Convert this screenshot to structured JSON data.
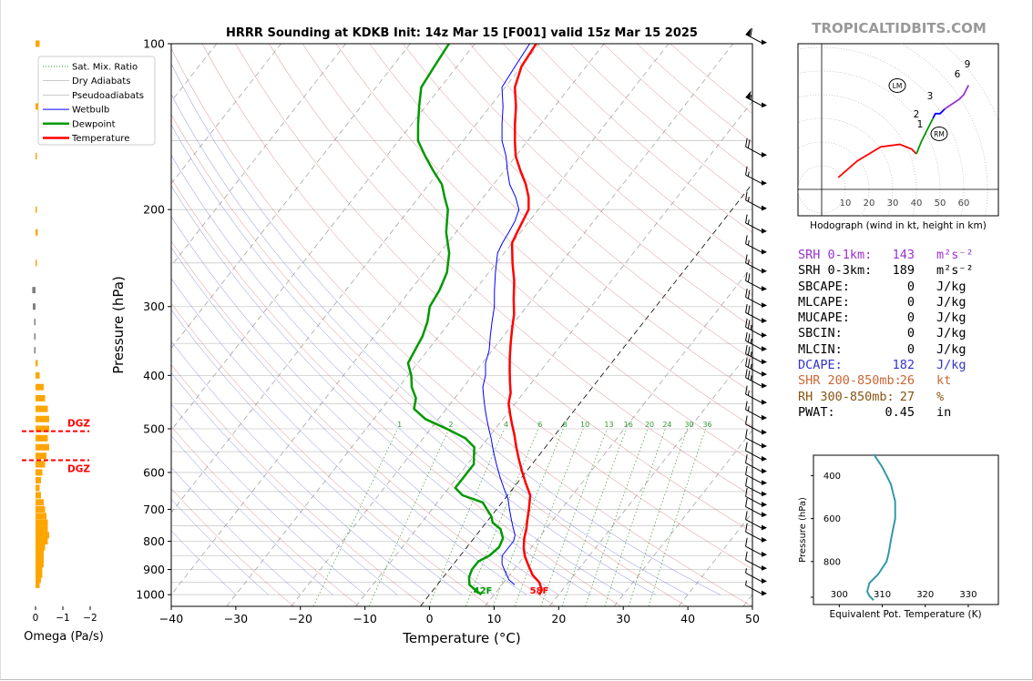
{
  "title": "HRRR Sounding at KDKB Init: 14z Mar 15 [F001] valid 15z Mar 15 2025",
  "watermark": "TROPICALTIDBITS.COM",
  "colors": {
    "temperature": "#ff0000",
    "dewpoint": "#009900",
    "wetbulb": "#0000ff",
    "omega": "#ffa500",
    "omega_neg": "#808080",
    "srh1": "#9933cc",
    "dcape": "#3333cc",
    "shr": "#cc6633",
    "rh": "#885511",
    "theta_e": "#3399aa"
  },
  "chart_data": [
    {
      "type": "line",
      "name": "skewt",
      "xlabel": "Temperature (°C)",
      "ylabel": "Pressure (hPa)",
      "xlim": [
        -40,
        50
      ],
      "ylim": [
        1050,
        100
      ],
      "y_scale": "log",
      "x_ticks": [
        "−40",
        "−30",
        "−20",
        "−10",
        "0",
        "10",
        "20",
        "30",
        "40",
        "50"
      ],
      "y_ticks": [
        100,
        200,
        300,
        400,
        500,
        600,
        700,
        800,
        900,
        1000
      ],
      "legend": {
        "placement": "top-left",
        "entries": [
          {
            "label": "Sat. Mix. Ratio",
            "style": "dotted",
            "color": "#339933"
          },
          {
            "label": "Dry Adiabats",
            "style": "solid-thin",
            "color": "#cc6666"
          },
          {
            "label": "Pseudoadiabats",
            "style": "solid-thin",
            "color": "#6666cc"
          },
          {
            "label": "Wetbulb",
            "style": "solid",
            "color": "#0000ff"
          },
          {
            "label": "Dewpoint",
            "style": "thick",
            "color": "#009900"
          },
          {
            "label": "Temperature",
            "style": "thick",
            "color": "#ff0000"
          }
        ]
      },
      "mixing_ratio_labels": [
        "1",
        "2",
        "4",
        "6",
        "8",
        "10",
        "13",
        "16",
        "20",
        "24",
        "30",
        "36"
      ],
      "series": [
        {
          "name": "Temperature",
          "points": [
            [
              1000,
              17
            ],
            [
              980,
              16.8
            ],
            [
              950,
              15.5
            ],
            [
              920,
              13.5
            ],
            [
              880,
              11.5
            ],
            [
              850,
              10
            ],
            [
              820,
              8.8
            ],
            [
              790,
              7.8
            ],
            [
              760,
              7
            ],
            [
              730,
              6
            ],
            [
              700,
              5
            ],
            [
              660,
              3.5
            ],
            [
              630,
              1.5
            ],
            [
              600,
              -0.5
            ],
            [
              570,
              -2.5
            ],
            [
              540,
              -4.5
            ],
            [
              510,
              -6.5
            ],
            [
              490,
              -8
            ],
            [
              470,
              -9.5
            ],
            [
              450,
              -11
            ],
            [
              430,
              -12
            ],
            [
              410,
              -13.5
            ],
            [
              390,
              -15
            ],
            [
              370,
              -16.5
            ],
            [
              350,
              -18
            ],
            [
              330,
              -19.5
            ],
            [
              310,
              -21
            ],
            [
              290,
              -23
            ],
            [
              270,
              -25
            ],
            [
              250,
              -27.5
            ],
            [
              230,
              -30
            ],
            [
              220,
              -30.5
            ],
            [
              210,
              -31
            ],
            [
              200,
              -31.5
            ],
            [
              190,
              -33
            ],
            [
              180,
              -35
            ],
            [
              170,
              -37.5
            ],
            [
              160,
              -40
            ],
            [
              150,
              -42
            ],
            [
              140,
              -44
            ],
            [
              130,
              -46
            ],
            [
              120,
              -48.5
            ],
            [
              110,
              -50
            ],
            [
              100,
              -50.5
            ]
          ]
        },
        {
          "name": "Dewpoint",
          "points": [
            [
              1000,
              8
            ],
            [
              980,
              6.5
            ],
            [
              960,
              5
            ],
            [
              930,
              4
            ],
            [
              900,
              3.5
            ],
            [
              870,
              3.5
            ],
            [
              850,
              4.5
            ],
            [
              820,
              5
            ],
            [
              790,
              4.5
            ],
            [
              760,
              3
            ],
            [
              740,
              1
            ],
            [
              720,
              0
            ],
            [
              700,
              -1.5
            ],
            [
              680,
              -3
            ],
            [
              660,
              -7
            ],
            [
              640,
              -9
            ],
            [
              620,
              -9
            ],
            [
              600,
              -9
            ],
            [
              580,
              -9
            ],
            [
              560,
              -10
            ],
            [
              540,
              -11
            ],
            [
              520,
              -13.5
            ],
            [
              500,
              -17.5
            ],
            [
              480,
              -22
            ],
            [
              460,
              -25
            ],
            [
              440,
              -26
            ],
            [
              420,
              -28
            ],
            [
              400,
              -29.5
            ],
            [
              380,
              -31.5
            ],
            [
              360,
              -32
            ],
            [
              340,
              -32.5
            ],
            [
              320,
              -33.5
            ],
            [
              300,
              -35
            ],
            [
              280,
              -35.5
            ],
            [
              260,
              -36.5
            ],
            [
              240,
              -38.5
            ],
            [
              220,
              -41.5
            ],
            [
              200,
              -44
            ],
            [
              190,
              -46
            ],
            [
              180,
              -48
            ],
            [
              170,
              -51
            ],
            [
              160,
              -54
            ],
            [
              150,
              -57
            ],
            [
              140,
              -59
            ],
            [
              130,
              -61
            ],
            [
              120,
              -63
            ],
            [
              110,
              -63.5
            ],
            [
              100,
              -64
            ]
          ]
        },
        {
          "name": "Wetbulb",
          "points": [
            [
              960,
              12
            ],
            [
              940,
              10.5
            ],
            [
              910,
              9
            ],
            [
              880,
              7.5
            ],
            [
              850,
              6.5
            ],
            [
              820,
              6.5
            ],
            [
              800,
              6.5
            ],
            [
              780,
              6
            ],
            [
              760,
              5
            ],
            [
              730,
              3.5
            ],
            [
              700,
              2
            ],
            [
              670,
              0.5
            ],
            [
              640,
              -1.5
            ],
            [
              610,
              -3.5
            ],
            [
              580,
              -5.5
            ],
            [
              550,
              -7.5
            ],
            [
              520,
              -9.5
            ],
            [
              500,
              -11
            ],
            [
              480,
              -12.5
            ],
            [
              460,
              -14
            ],
            [
              440,
              -15.5
            ],
            [
              420,
              -17
            ],
            [
              400,
              -18
            ],
            [
              380,
              -19.5
            ],
            [
              360,
              -20.5
            ],
            [
              340,
              -22
            ],
            [
              320,
              -23.5
            ],
            [
              300,
              -25
            ],
            [
              280,
              -27
            ],
            [
              260,
              -29
            ],
            [
              240,
              -31
            ],
            [
              230,
              -31.5
            ],
            [
              220,
              -31.8
            ],
            [
              210,
              -32.2
            ],
            [
              200,
              -33
            ],
            [
              190,
              -35
            ],
            [
              180,
              -37.5
            ],
            [
              170,
              -39.5
            ],
            [
              160,
              -41.5
            ],
            [
              150,
              -44
            ],
            [
              140,
              -46
            ],
            [
              130,
              -48
            ],
            [
              120,
              -50.5
            ],
            [
              110,
              -51
            ],
            [
              100,
              -51.5
            ]
          ]
        }
      ],
      "surface_labels": {
        "dewpoint": "42F",
        "temperature": "58F"
      },
      "wind_barbs": {
        "pressures": [
          100,
          130,
          160,
          180,
          200,
          220,
          240,
          260,
          280,
          300,
          320,
          340,
          360,
          380,
          400,
          420,
          450,
          480,
          510,
          540,
          570,
          600,
          630,
          660,
          690,
          720,
          760,
          800,
          850,
          900,
          950,
          1000
        ],
        "speeds_kt": [
          60,
          55,
          20,
          15,
          15,
          15,
          15,
          15,
          20,
          20,
          20,
          25,
          25,
          25,
          25,
          25,
          15,
          15,
          10,
          10,
          10,
          10,
          10,
          10,
          10,
          10,
          10,
          10,
          10,
          10,
          5,
          5
        ]
      }
    },
    {
      "type": "bar",
      "name": "omega",
      "xlabel": "Omega (Pa/s)",
      "x_ticks": [
        "0",
        "−1",
        "−2"
      ],
      "dgz_label": "DGZ",
      "pressures": [
        100,
        130,
        160,
        200,
        220,
        250,
        280,
        300,
        320,
        340,
        360,
        380,
        400,
        420,
        440,
        460,
        480,
        500,
        520,
        540,
        560,
        580,
        600,
        620,
        640,
        660,
        680,
        700,
        720,
        740,
        760,
        780,
        800,
        820,
        840,
        860,
        880,
        900,
        920,
        940,
        960
      ],
      "values": [
        -0.15,
        -0.1,
        -0.05,
        -0.03,
        -0.08,
        -0.02,
        0.12,
        0.1,
        0.02,
        0.03,
        0.05,
        -0.08,
        -0.15,
        -0.3,
        -0.35,
        -0.45,
        -0.5,
        -0.5,
        -0.45,
        -0.5,
        -0.4,
        -0.35,
        -0.25,
        -0.2,
        -0.15,
        -0.2,
        -0.3,
        -0.35,
        -0.4,
        -0.45,
        -0.45,
        -0.5,
        -0.45,
        -0.35,
        -0.3,
        -0.3,
        -0.3,
        -0.25,
        -0.25,
        -0.2,
        -0.15
      ]
    },
    {
      "type": "line",
      "name": "hodograph",
      "xlabel": "Hodograph (wind in kt, height in km)",
      "ring_labels": [
        "10",
        "20",
        "30",
        "40",
        "50",
        "60"
      ],
      "storm_motion_labels": [
        "LM",
        "RM"
      ],
      "height_labels": [
        "1",
        "2",
        "3",
        "6",
        "9"
      ],
      "points": [
        [
          7,
          5
        ],
        [
          15,
          12
        ],
        [
          25,
          18
        ],
        [
          33,
          19
        ],
        [
          38,
          17
        ],
        [
          40,
          15
        ],
        [
          42,
          20
        ],
        [
          45,
          26
        ],
        [
          47,
          30
        ],
        [
          48,
          32
        ],
        [
          50,
          32
        ],
        [
          52,
          34
        ],
        [
          55,
          36
        ],
        [
          58,
          38
        ],
        [
          60,
          40
        ],
        [
          62,
          44
        ]
      ]
    },
    {
      "type": "line",
      "name": "theta_e",
      "xlabel": "Equivalent Pot. Temperature (K)",
      "ylabel": "Pressure (hPa)",
      "x_ticks": [
        "300",
        "310",
        "320",
        "330"
      ],
      "y_ticks": [
        "400",
        "600",
        "800"
      ],
      "points": [
        [
          308,
          300
        ],
        [
          309,
          330
        ],
        [
          310,
          360
        ],
        [
          311,
          400
        ],
        [
          312,
          440
        ],
        [
          312.5,
          480
        ],
        [
          313,
          520
        ],
        [
          313,
          560
        ],
        [
          313,
          600
        ],
        [
          312.5,
          650
        ],
        [
          312,
          700
        ],
        [
          311.5,
          760
        ],
        [
          311,
          800
        ],
        [
          309,
          860
        ],
        [
          307,
          900
        ],
        [
          306.5,
          940
        ],
        [
          307,
          960
        ],
        [
          308,
          980
        ]
      ]
    }
  ],
  "stats": [
    {
      "label": "SRH 0-1km:",
      "value": "143",
      "unit": "m²s⁻²",
      "color": "#9933cc"
    },
    {
      "label": "SRH 0-3km:",
      "value": "189",
      "unit": "m²s⁻²",
      "color": "#000000"
    },
    {
      "label": "SBCAPE:",
      "value": "0",
      "unit": "J/kg",
      "color": "#000000"
    },
    {
      "label": "MLCAPE:",
      "value": "0",
      "unit": "J/kg",
      "color": "#000000"
    },
    {
      "label": "MUCAPE:",
      "value": "0",
      "unit": "J/kg",
      "color": "#000000"
    },
    {
      "label": "SBCIN:",
      "value": "0",
      "unit": "J/kg",
      "color": "#000000"
    },
    {
      "label": "MLCIN:",
      "value": "0",
      "unit": "J/kg",
      "color": "#000000"
    },
    {
      "label": "DCAPE:",
      "value": "182",
      "unit": "J/kg",
      "color": "#3333cc"
    },
    {
      "label": "SHR 200-850mb:",
      "value": "26",
      "unit": "kt",
      "color": "#cc6633"
    },
    {
      "label": "RH 300-850mb:",
      "value": "27",
      "unit": "%",
      "color": "#885511"
    },
    {
      "label": "PWAT:",
      "value": "0.45",
      "unit": "in",
      "color": "#000000"
    }
  ]
}
